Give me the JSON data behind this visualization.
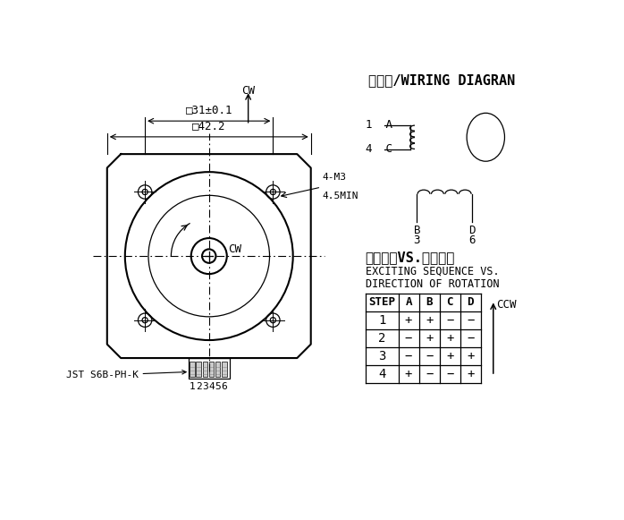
{
  "bg_color": "#ffffff",
  "line_color": "#000000",
  "title_wiring": "接线图/WIRING DIAGRAN",
  "title_excite": "励磁顺序VS.旋转方向",
  "subtitle_excite1": "EXCITING SEQUENCE VS.",
  "subtitle_excite2": "DIRECTION OF ROTATION",
  "dim_42": "□42.2",
  "dim_31": "□31±0.1",
  "dim_m3": "4-M3",
  "dim_45": "4.5MIN",
  "label_cw": "CW",
  "label_jst": "JST S6B-PH-K",
  "pin_labels": [
    "1",
    "2",
    "3",
    "4",
    "5",
    "6"
  ],
  "table_headers": [
    "STEP",
    "A",
    "B",
    "C",
    "D"
  ],
  "table_data": [
    [
      "1",
      "+",
      "+",
      "−",
      "−"
    ],
    [
      "2",
      "−",
      "+",
      "+",
      "−"
    ],
    [
      "3",
      "−",
      "−",
      "+",
      "+"
    ],
    [
      "4",
      "+",
      "−",
      "−",
      "+"
    ]
  ],
  "ccw_label": "CCW",
  "cw_label": "CW"
}
